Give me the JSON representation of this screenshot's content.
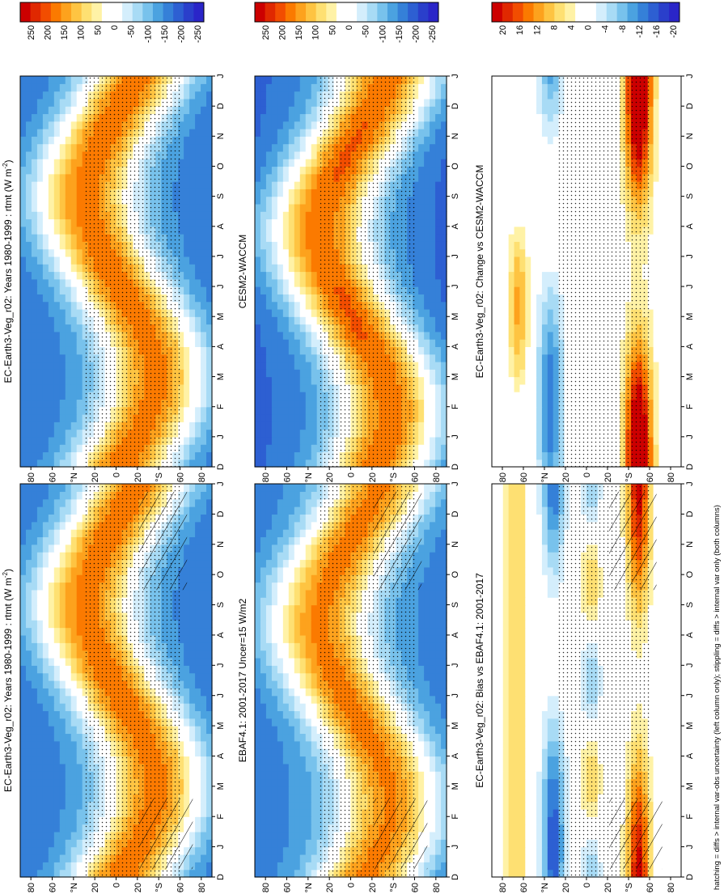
{
  "figure_note": "hatching = diffs > internal var-obs uncertainty (left column only); stippling = diffs > internal var only (both columns)",
  "chart_data": [
    {
      "id": "p1",
      "type": "heatmap",
      "title": "EC-Earth3-Veg_r02: Years 1980-1999 : rtmt (W m",
      "title_sup": "-2",
      "title_end": ")",
      "xlabel": "",
      "ylabel": "",
      "time_ticks": [
        "D",
        "J",
        "F",
        "M",
        "A",
        "M",
        "J",
        "J",
        "A",
        "S",
        "O",
        "N",
        "D",
        "J"
      ],
      "lat_ticks": [
        "80",
        "60",
        "°N",
        "20",
        "0",
        "20",
        "°S",
        "60",
        "80"
      ],
      "field": "abs",
      "shift": 0,
      "amp": 1.0,
      "hatch": true,
      "stipple": true,
      "colorbar": [
        "250",
        "200",
        "150",
        "100",
        "50",
        "0",
        "-50",
        "-100",
        "-150",
        "-200",
        "-250"
      ]
    },
    {
      "id": "p2",
      "type": "heatmap",
      "title": "EC-Earth3-Veg_r02: Years 1980-1999 : rtmt (W m",
      "title_sup": "-2",
      "title_end": ")",
      "xlabel": "",
      "ylabel": "",
      "time_ticks": [
        "D",
        "J",
        "F",
        "M",
        "A",
        "M",
        "J",
        "J",
        "A",
        "S",
        "O",
        "N",
        "D",
        "J"
      ],
      "lat_ticks": [
        "80",
        "60",
        "°N",
        "20",
        "0",
        "20",
        "°S",
        "60",
        "80"
      ],
      "field": "abs",
      "shift": 0,
      "amp": 1.0,
      "hatch": false,
      "stipple": true,
      "colorbar": [
        "250",
        "200",
        "150",
        "100",
        "50",
        "0",
        "-50",
        "-100",
        "-150",
        "-200",
        "-250"
      ]
    },
    {
      "id": "p3",
      "type": "heatmap",
      "title": "EBAF4.1: 2001-2017 Uncer=15 W/m2",
      "title_sup": "",
      "title_end": "",
      "xlabel": "",
      "ylabel": "",
      "time_ticks": [
        "D",
        "J",
        "F",
        "M",
        "A",
        "M",
        "J",
        "J",
        "A",
        "S",
        "O",
        "N",
        "D",
        "J"
      ],
      "lat_ticks": [
        "80",
        "60",
        "°N",
        "20",
        "0",
        "20",
        "°S",
        "60",
        "80"
      ],
      "field": "abs",
      "shift": 0.3,
      "amp": 0.95,
      "hatch": true,
      "stipple": true,
      "colorbar": [
        "250",
        "200",
        "150",
        "100",
        "50",
        "0",
        "-50",
        "-100",
        "-150",
        "-200",
        "-250"
      ]
    },
    {
      "id": "p4",
      "type": "heatmap",
      "title": "CESM2-WACCM",
      "title_sup": "",
      "title_end": "",
      "xlabel": "",
      "ylabel": "",
      "time_ticks": [
        "D",
        "J",
        "F",
        "M",
        "A",
        "M",
        "J",
        "J",
        "A",
        "S",
        "O",
        "N",
        "D",
        "J"
      ],
      "lat_ticks": [
        "80",
        "60",
        "°N",
        "20",
        "0",
        "20",
        "°S",
        "60",
        "80"
      ],
      "field": "abs",
      "shift": 0.6,
      "amp": 1.05,
      "hatch": false,
      "stipple": true,
      "colorbar": [
        "250",
        "200",
        "150",
        "100",
        "50",
        "0",
        "-50",
        "-100",
        "-150",
        "-200",
        "-250"
      ]
    },
    {
      "id": "p5",
      "type": "heatmap",
      "title": "EC-Earth3-Veg_r02: Bias vs EBAF4.1: 2001-2017",
      "title_sup": "",
      "title_end": "",
      "xlabel": "",
      "ylabel": "",
      "time_ticks": [
        "D",
        "J",
        "F",
        "M",
        "A",
        "M",
        "J",
        "J",
        "A",
        "S",
        "O",
        "N",
        "D",
        "J"
      ],
      "lat_ticks": [
        "80",
        "60",
        "°N",
        "20",
        "0",
        "20",
        "°S",
        "60",
        "80"
      ],
      "field": "bias",
      "shift": 0,
      "amp": 1.0,
      "hatch": true,
      "stipple": true,
      "colorbar": [
        "20",
        "16",
        "12",
        "8",
        "4",
        "0",
        "-4",
        "-8",
        "-12",
        "-16",
        "-20"
      ]
    },
    {
      "id": "p6",
      "type": "heatmap",
      "title": "EC-Earth3-Veg_r02: Change vs CESM2-WACCM",
      "title_sup": "",
      "title_end": "",
      "xlabel": "",
      "ylabel": "",
      "time_ticks": [
        "D",
        "J",
        "F",
        "M",
        "A",
        "M",
        "J",
        "J",
        "A",
        "S",
        "O",
        "N",
        "D",
        "J"
      ],
      "lat_ticks": [
        "80",
        "60",
        "°N",
        "20",
        "0",
        "20",
        "°S",
        "60",
        "80"
      ],
      "field": "change",
      "shift": 0,
      "amp": 1.0,
      "hatch": false,
      "stipple": true,
      "colorbar": [
        "20",
        "16",
        "12",
        "8",
        "4",
        "0",
        "-4",
        "-8",
        "-12",
        "-16",
        "-20"
      ]
    }
  ],
  "palette": [
    "#cc0000",
    "#e02800",
    "#f24d00",
    "#fb7a00",
    "#fda21d",
    "#fec442",
    "#fee072",
    "#fff2a6",
    "#ffffff",
    "#ffffff",
    "#d4eefc",
    "#a8dbf5",
    "#78c2ec",
    "#4ba2e0",
    "#3580d8",
    "#2d5fd2",
    "#2a3fcb",
    "#2a25c8"
  ]
}
